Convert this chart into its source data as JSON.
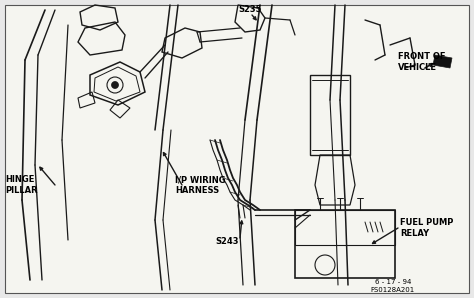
{
  "bg_color": "#e8e8e8",
  "fig_width": 4.74,
  "fig_height": 2.98,
  "dpi": 100,
  "labels": {
    "hinge_pillar": "HINGE\nPILLAR",
    "ip_wiring": "I/P WIRING\nHARNESS",
    "s235": "S235",
    "s243": "S243",
    "front_of_vehicle": "FRONT OF\nVEHICLE",
    "fuel_pump_relay": "FUEL PUMP\nRELAY",
    "date": "6 - 17 - 94",
    "doc_num": "FS0128A201"
  },
  "lc": "#1a1a1a",
  "tc": "#000000",
  "lw": 0.9
}
